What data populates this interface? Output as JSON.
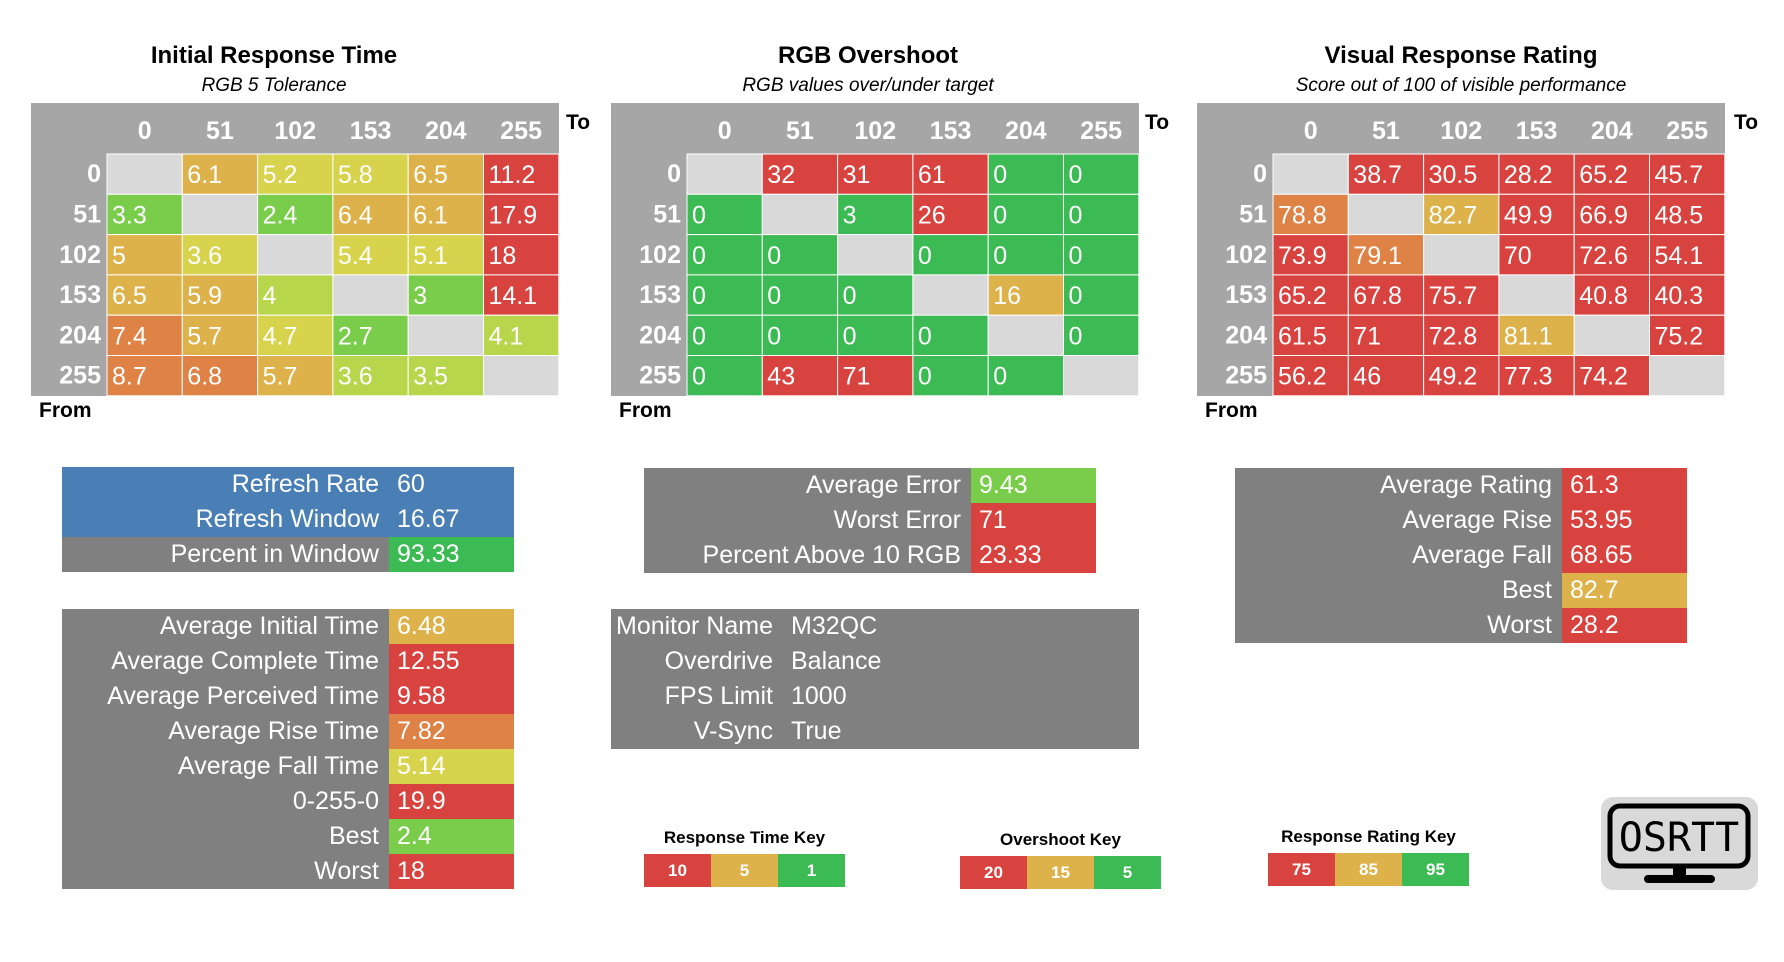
{
  "colors": {
    "red": "#d9433f",
    "orange": "#df8245",
    "gold": "#ddb24a",
    "yellow": "#d8d34c",
    "yellowgreen": "#b7d64c",
    "lime": "#79cd4a",
    "green": "#3cba53",
    "blank": "#d9d9d9",
    "grey": "#808080",
    "blue": "#4a7fb5"
  },
  "chart_data": [
    {
      "type": "heatmap",
      "title": "Initial Response Time",
      "subtitle": "RGB 5 Tolerance",
      "x_axis_label": "To",
      "y_axis_label": "From",
      "categories": [
        "0",
        "51",
        "102",
        "153",
        "204",
        "255"
      ],
      "values": [
        [
          "",
          "6.1",
          "5.2",
          "5.8",
          "6.5",
          "11.2"
        ],
        [
          "3.3",
          "",
          "2.4",
          "6.4",
          "6.1",
          "17.9"
        ],
        [
          "5",
          "3.6",
          "",
          "5.4",
          "5.1",
          "18"
        ],
        [
          "6.5",
          "5.9",
          "4",
          "",
          "3",
          "14.1"
        ],
        [
          "7.4",
          "5.7",
          "4.7",
          "2.7",
          "",
          "4.1"
        ],
        [
          "8.7",
          "6.8",
          "5.7",
          "3.6",
          "3.5",
          ""
        ]
      ],
      "cell_colors": [
        [
          "blank",
          "gold",
          "yellow",
          "yellow",
          "gold",
          "red"
        ],
        [
          "lime",
          "blank",
          "lime",
          "gold",
          "gold",
          "red"
        ],
        [
          "gold",
          "yellow",
          "blank",
          "yellow",
          "yellow",
          "red"
        ],
        [
          "gold",
          "gold",
          "yellowgreen",
          "blank",
          "lime",
          "red"
        ],
        [
          "orange",
          "gold",
          "yellow",
          "lime",
          "blank",
          "yellowgreen"
        ],
        [
          "orange",
          "orange",
          "gold",
          "yellowgreen",
          "yellowgreen",
          "blank"
        ]
      ]
    },
    {
      "type": "heatmap",
      "title": "RGB Overshoot",
      "subtitle": "RGB values over/under target",
      "x_axis_label": "To",
      "y_axis_label": "From",
      "categories": [
        "0",
        "51",
        "102",
        "153",
        "204",
        "255"
      ],
      "values": [
        [
          "",
          "32",
          "31",
          "61",
          "0",
          "0"
        ],
        [
          "0",
          "",
          "3",
          "26",
          "0",
          "0"
        ],
        [
          "0",
          "0",
          "",
          "0",
          "0",
          "0"
        ],
        [
          "0",
          "0",
          "0",
          "",
          "16",
          "0"
        ],
        [
          "0",
          "0",
          "0",
          "0",
          "",
          "0"
        ],
        [
          "0",
          "43",
          "71",
          "0",
          "0",
          ""
        ]
      ],
      "cell_colors": [
        [
          "blank",
          "red",
          "red",
          "red",
          "green",
          "green"
        ],
        [
          "green",
          "blank",
          "green",
          "red",
          "green",
          "green"
        ],
        [
          "green",
          "green",
          "blank",
          "green",
          "green",
          "green"
        ],
        [
          "green",
          "green",
          "green",
          "blank",
          "gold",
          "green"
        ],
        [
          "green",
          "green",
          "green",
          "green",
          "blank",
          "green"
        ],
        [
          "green",
          "red",
          "red",
          "green",
          "green",
          "blank"
        ]
      ]
    },
    {
      "type": "heatmap",
      "title": "Visual Response Rating",
      "subtitle": "Score out of 100 of visible performance",
      "x_axis_label": "To",
      "y_axis_label": "From",
      "categories": [
        "0",
        "51",
        "102",
        "153",
        "204",
        "255"
      ],
      "values": [
        [
          "",
          "38.7",
          "30.5",
          "28.2",
          "65.2",
          "45.7"
        ],
        [
          "78.8",
          "",
          "82.7",
          "49.9",
          "66.9",
          "48.5"
        ],
        [
          "73.9",
          "79.1",
          "",
          "70",
          "72.6",
          "54.1"
        ],
        [
          "65.2",
          "67.8",
          "75.7",
          "",
          "40.8",
          "40.3"
        ],
        [
          "61.5",
          "71",
          "72.8",
          "81.1",
          "",
          "75.2"
        ],
        [
          "56.2",
          "46",
          "49.2",
          "77.3",
          "74.2",
          ""
        ]
      ],
      "cell_colors": [
        [
          "blank",
          "red",
          "red",
          "red",
          "red",
          "red"
        ],
        [
          "orange",
          "blank",
          "gold",
          "red",
          "red",
          "red"
        ],
        [
          "red",
          "orange",
          "blank",
          "red",
          "red",
          "red"
        ],
        [
          "red",
          "red",
          "red",
          "blank",
          "red",
          "red"
        ],
        [
          "red",
          "red",
          "red",
          "gold",
          "blank",
          "red"
        ],
        [
          "red",
          "red",
          "red",
          "red",
          "red",
          "blank"
        ]
      ]
    }
  ],
  "panels": {
    "refresh": [
      {
        "label": "Refresh Rate",
        "value": "60",
        "label_color": "blue",
        "value_color": "blue"
      },
      {
        "label": "Refresh Window",
        "value": "16.67",
        "label_color": "blue",
        "value_color": "blue"
      },
      {
        "label": "Percent in Window",
        "value": "93.33",
        "label_color": "grey",
        "value_color": "green"
      }
    ],
    "times": [
      {
        "label": "Average Initial Time",
        "value": "6.48",
        "value_color": "gold"
      },
      {
        "label": "Average Complete Time",
        "value": "12.55",
        "value_color": "red"
      },
      {
        "label": "Average Perceived Time",
        "value": "9.58",
        "value_color": "red"
      },
      {
        "label": "Average Rise Time",
        "value": "7.82",
        "value_color": "orange"
      },
      {
        "label": "Average Fall Time",
        "value": "5.14",
        "value_color": "yellow"
      },
      {
        "label": "0-255-0",
        "value": "19.9",
        "value_color": "red"
      },
      {
        "label": "Best",
        "value": "2.4",
        "value_color": "lime"
      },
      {
        "label": "Worst",
        "value": "18",
        "value_color": "red"
      }
    ],
    "error": [
      {
        "label": "Average Error",
        "value": "9.43",
        "value_color": "lime"
      },
      {
        "label": "Worst Error",
        "value": "71",
        "value_color": "red"
      },
      {
        "label": "Percent Above 10 RGB",
        "value": "23.33",
        "value_color": "red"
      }
    ],
    "monitor": [
      {
        "label": "Monitor Name",
        "value": "M32QC"
      },
      {
        "label": "Overdrive",
        "value": "Balance"
      },
      {
        "label": "FPS Limit",
        "value": "1000"
      },
      {
        "label": "V-Sync",
        "value": "True"
      }
    ],
    "rating": [
      {
        "label": "Average Rating",
        "value": "61.3",
        "value_color": "red"
      },
      {
        "label": "Average Rise",
        "value": "53.95",
        "value_color": "red"
      },
      {
        "label": "Average Fall",
        "value": "68.65",
        "value_color": "red"
      },
      {
        "label": "Best",
        "value": "82.7",
        "value_color": "gold"
      },
      {
        "label": "Worst",
        "value": "28.2",
        "value_color": "red"
      }
    ]
  },
  "keys": [
    {
      "title": "Response Time Key",
      "cells": [
        {
          "text": "10",
          "color": "red"
        },
        {
          "text": "5",
          "color": "gold"
        },
        {
          "text": "1",
          "color": "green"
        }
      ]
    },
    {
      "title": "Overshoot Key",
      "cells": [
        {
          "text": "20",
          "color": "red"
        },
        {
          "text": "15",
          "color": "gold"
        },
        {
          "text": "5",
          "color": "green"
        }
      ]
    },
    {
      "title": "Response Rating Key",
      "cells": [
        {
          "text": "75",
          "color": "red"
        },
        {
          "text": "85",
          "color": "gold"
        },
        {
          "text": "95",
          "color": "green"
        }
      ]
    }
  ],
  "logo": {
    "text": "OSRTT"
  }
}
